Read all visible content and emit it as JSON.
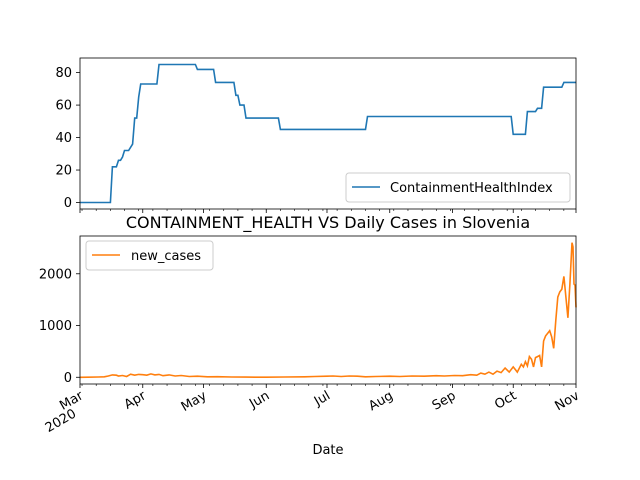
{
  "chart_data": [
    {
      "type": "line",
      "title": "",
      "xlabel": "",
      "ylabel": "",
      "ylim": [
        -4,
        89
      ],
      "yticks": [
        0,
        20,
        40,
        60,
        80
      ],
      "legend_position": "lower-right",
      "series": [
        {
          "name": "ContainmentHealthIndex",
          "color": "#1f77b4",
          "points": [
            [
              "2020-03-01",
              0
            ],
            [
              "2020-03-16",
              0
            ],
            [
              "2020-03-17",
              22
            ],
            [
              "2020-03-18",
              22
            ],
            [
              "2020-03-19",
              22
            ],
            [
              "2020-03-20",
              26
            ],
            [
              "2020-03-21",
              26
            ],
            [
              "2020-03-22",
              28
            ],
            [
              "2020-03-23",
              32
            ],
            [
              "2020-03-24",
              32
            ],
            [
              "2020-03-25",
              32
            ],
            [
              "2020-03-26",
              34
            ],
            [
              "2020-03-27",
              36
            ],
            [
              "2020-03-28",
              52
            ],
            [
              "2020-03-29",
              52
            ],
            [
              "2020-03-30",
              65
            ],
            [
              "2020-03-31",
              73
            ],
            [
              "2020-04-08",
              73
            ],
            [
              "2020-04-09",
              85
            ],
            [
              "2020-04-27",
              85
            ],
            [
              "2020-04-28",
              82
            ],
            [
              "2020-05-06",
              82
            ],
            [
              "2020-05-07",
              74
            ],
            [
              "2020-05-16",
              74
            ],
            [
              "2020-05-17",
              66
            ],
            [
              "2020-05-18",
              66
            ],
            [
              "2020-05-19",
              60
            ],
            [
              "2020-05-21",
              60
            ],
            [
              "2020-05-22",
              52
            ],
            [
              "2020-06-07",
              52
            ],
            [
              "2020-06-08",
              45
            ],
            [
              "2020-07-20",
              45
            ],
            [
              "2020-07-21",
              53
            ],
            [
              "2020-09-30",
              53
            ],
            [
              "2020-10-01",
              42
            ],
            [
              "2020-10-07",
              42
            ],
            [
              "2020-10-08",
              56
            ],
            [
              "2020-10-12",
              56
            ],
            [
              "2020-10-13",
              58
            ],
            [
              "2020-10-15",
              58
            ],
            [
              "2020-10-16",
              71
            ],
            [
              "2020-10-25",
              71
            ],
            [
              "2020-10-26",
              74
            ],
            [
              "2020-11-01",
              74
            ]
          ]
        }
      ]
    },
    {
      "type": "line",
      "title": "CONTAINMENT_HEALTH VS Daily Cases in Slovenia",
      "xlabel": "Date",
      "ylabel": "",
      "ylim": [
        -130,
        2730
      ],
      "yticks": [
        0,
        1000,
        2000
      ],
      "x_ticks": [
        {
          "date": "2020-03-01",
          "label": "Mar",
          "sublabel": "2020"
        },
        {
          "date": "2020-04-01",
          "label": "Apr"
        },
        {
          "date": "2020-05-01",
          "label": "May"
        },
        {
          "date": "2020-06-01",
          "label": "Jun"
        },
        {
          "date": "2020-07-01",
          "label": "Jul"
        },
        {
          "date": "2020-08-01",
          "label": "Aug"
        },
        {
          "date": "2020-09-01",
          "label": "Sep"
        },
        {
          "date": "2020-10-01",
          "label": "Oct"
        },
        {
          "date": "2020-11-01",
          "label": "Nov"
        }
      ],
      "legend_position": "upper-left",
      "series": [
        {
          "name": "new_cases",
          "color": "#ff7f0e",
          "points": [
            [
              "2020-03-01",
              0
            ],
            [
              "2020-03-05",
              2
            ],
            [
              "2020-03-10",
              5
            ],
            [
              "2020-03-13",
              10
            ],
            [
              "2020-03-15",
              25
            ],
            [
              "2020-03-17",
              45
            ],
            [
              "2020-03-19",
              40
            ],
            [
              "2020-03-20",
              25
            ],
            [
              "2020-03-22",
              35
            ],
            [
              "2020-03-24",
              15
            ],
            [
              "2020-03-26",
              60
            ],
            [
              "2020-03-28",
              40
            ],
            [
              "2020-03-30",
              55
            ],
            [
              "2020-04-01",
              50
            ],
            [
              "2020-04-03",
              40
            ],
            [
              "2020-04-05",
              65
            ],
            [
              "2020-04-07",
              45
            ],
            [
              "2020-04-09",
              55
            ],
            [
              "2020-04-11",
              30
            ],
            [
              "2020-04-14",
              45
            ],
            [
              "2020-04-17",
              25
            ],
            [
              "2020-04-20",
              35
            ],
            [
              "2020-04-24",
              15
            ],
            [
              "2020-04-28",
              20
            ],
            [
              "2020-05-03",
              10
            ],
            [
              "2020-05-08",
              12
            ],
            [
              "2020-05-15",
              5
            ],
            [
              "2020-05-22",
              3
            ],
            [
              "2020-06-01",
              2
            ],
            [
              "2020-06-10",
              5
            ],
            [
              "2020-06-20",
              10
            ],
            [
              "2020-06-25",
              15
            ],
            [
              "2020-07-01",
              20
            ],
            [
              "2020-07-04",
              25
            ],
            [
              "2020-07-08",
              15
            ],
            [
              "2020-07-12",
              25
            ],
            [
              "2020-07-16",
              20
            ],
            [
              "2020-07-20",
              10
            ],
            [
              "2020-07-25",
              15
            ],
            [
              "2020-08-01",
              20
            ],
            [
              "2020-08-06",
              15
            ],
            [
              "2020-08-12",
              25
            ],
            [
              "2020-08-18",
              20
            ],
            [
              "2020-08-24",
              30
            ],
            [
              "2020-08-28",
              25
            ],
            [
              "2020-09-02",
              35
            ],
            [
              "2020-09-06",
              30
            ],
            [
              "2020-09-10",
              50
            ],
            [
              "2020-09-13",
              40
            ],
            [
              "2020-09-15",
              80
            ],
            [
              "2020-09-17",
              60
            ],
            [
              "2020-09-19",
              100
            ],
            [
              "2020-09-21",
              60
            ],
            [
              "2020-09-23",
              120
            ],
            [
              "2020-09-25",
              90
            ],
            [
              "2020-09-27",
              180
            ],
            [
              "2020-09-29",
              100
            ],
            [
              "2020-10-01",
              200
            ],
            [
              "2020-10-02",
              150
            ],
            [
              "2020-10-03",
              100
            ],
            [
              "2020-10-05",
              250
            ],
            [
              "2020-10-06",
              200
            ],
            [
              "2020-10-07",
              300
            ],
            [
              "2020-10-08",
              220
            ],
            [
              "2020-10-09",
              400
            ],
            [
              "2020-10-10",
              350
            ],
            [
              "2020-10-11",
              200
            ],
            [
              "2020-10-12",
              380
            ],
            [
              "2020-10-13",
              400
            ],
            [
              "2020-10-14",
              420
            ],
            [
              "2020-10-15",
              200
            ],
            [
              "2020-10-16",
              700
            ],
            [
              "2020-10-17",
              800
            ],
            [
              "2020-10-18",
              850
            ],
            [
              "2020-10-19",
              900
            ],
            [
              "2020-10-20",
              780
            ],
            [
              "2020-10-21",
              560
            ],
            [
              "2020-10-22",
              1100
            ],
            [
              "2020-10-23",
              1550
            ],
            [
              "2020-10-24",
              1650
            ],
            [
              "2020-10-25",
              1700
            ],
            [
              "2020-10-26",
              1950
            ],
            [
              "2020-10-27",
              1550
            ],
            [
              "2020-10-28",
              1150
            ],
            [
              "2020-10-29",
              1800
            ],
            [
              "2020-10-30",
              2600
            ],
            [
              "2020-10-30T12",
              2520
            ],
            [
              "2020-10-31",
              1800
            ],
            [
              "2020-10-31T12",
              1780
            ],
            [
              "2020-11-01",
              1350
            ]
          ]
        }
      ]
    }
  ]
}
